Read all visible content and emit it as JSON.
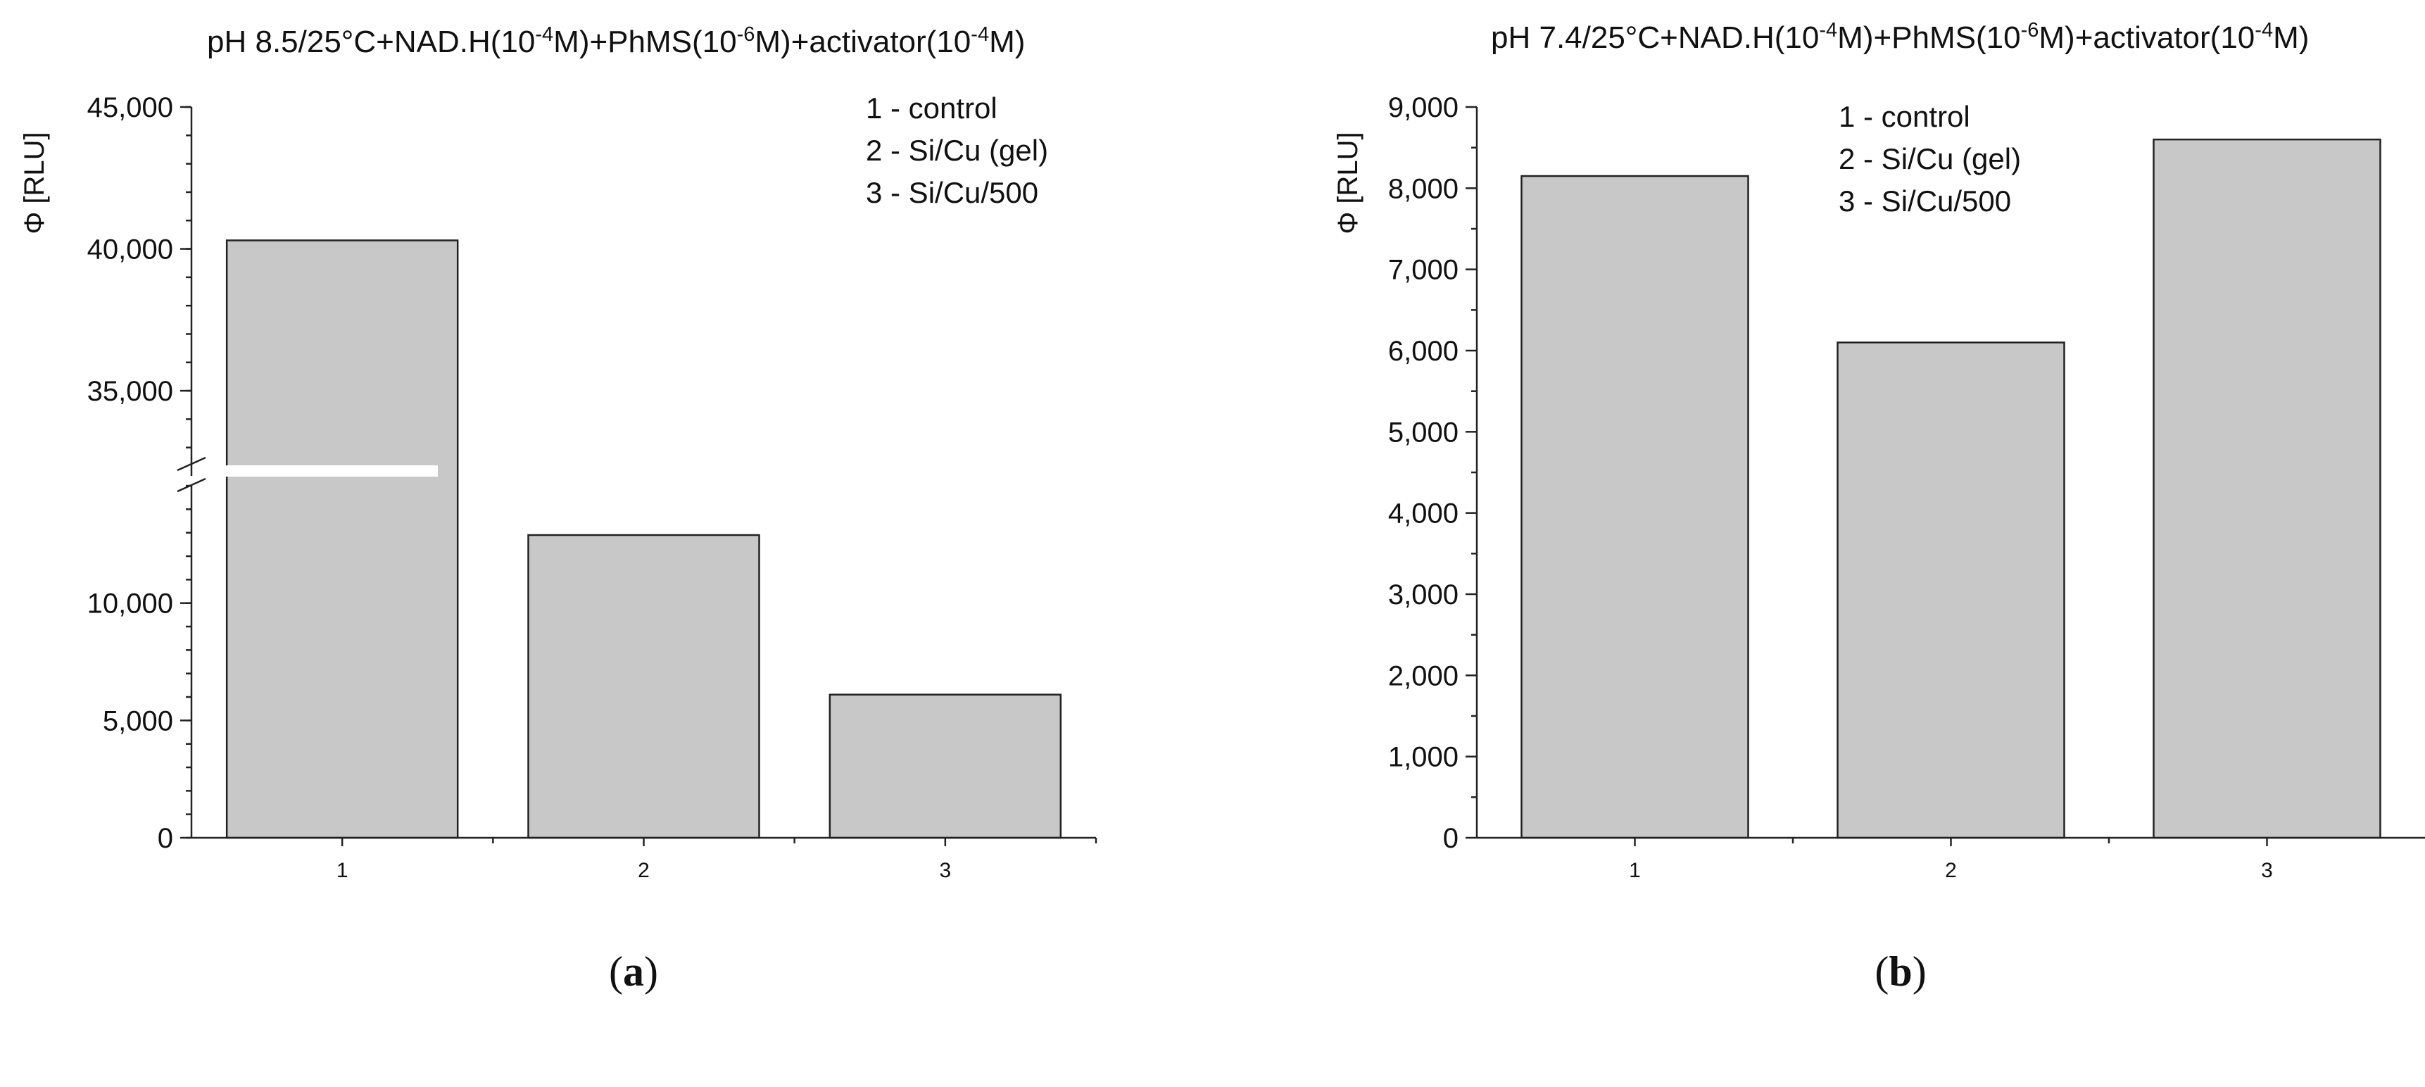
{
  "chart_data": [
    {
      "type": "bar",
      "panel": "(a)",
      "panel_letter": "a",
      "title": {
        "p1": "pH 8.5/25°C+NAD.H(10",
        "s1": "-4",
        "p2": "M)+PhMS(10",
        "s2": "-6",
        "p3": "M)+activator(10",
        "s3": "-4",
        "p4": "M)"
      },
      "ylabel": "Φ [RLU]",
      "categories": [
        "1",
        "2",
        "3"
      ],
      "values": [
        40300,
        12900,
        6100
      ],
      "broken_axis": {
        "lower": [
          0,
          15000
        ],
        "upper": [
          32000,
          45000
        ]
      },
      "yticks_lower": [
        {
          "value": 0,
          "label": "0"
        },
        {
          "value": 5000,
          "label": "5,000"
        },
        {
          "value": 10000,
          "label": "10,000"
        }
      ],
      "yticks_upper": [
        {
          "value": 35000,
          "label": "35,000"
        },
        {
          "value": 40000,
          "label": "40,000"
        },
        {
          "value": 45000,
          "label": "45,000"
        }
      ],
      "legend": [
        "1 - control",
        "2 - Si/Cu (gel)",
        "3 - Si/Cu/500"
      ],
      "legend_position": "top-right"
    },
    {
      "type": "bar",
      "panel": "(b)",
      "panel_letter": "b",
      "title": {
        "p1": "pH 7.4/25°C+NAD.H(10",
        "s1": "-4",
        "p2": "M)+PhMS(10",
        "s2": "-6",
        "p3": "M)+activator(10",
        "s3": "-4",
        "p4": "M)"
      },
      "ylabel": "Φ [RLU]",
      "categories": [
        "1",
        "2",
        "3"
      ],
      "values": [
        8150,
        6100,
        8600
      ],
      "ylim": [
        0,
        9000
      ],
      "yticks": [
        {
          "value": 0,
          "label": "0"
        },
        {
          "value": 1000,
          "label": "1,000"
        },
        {
          "value": 2000,
          "label": "2,000"
        },
        {
          "value": 3000,
          "label": "3,000"
        },
        {
          "value": 4000,
          "label": "4,000"
        },
        {
          "value": 5000,
          "label": "5,000"
        },
        {
          "value": 6000,
          "label": "6,000"
        },
        {
          "value": 7000,
          "label": "7,000"
        },
        {
          "value": 8000,
          "label": "8,000"
        },
        {
          "value": 9000,
          "label": "9,000"
        }
      ],
      "legend": [
        "1 - control",
        "2 - Si/Cu (gel)",
        "3 - Si/Cu/500"
      ],
      "legend_position": "top-center"
    }
  ]
}
